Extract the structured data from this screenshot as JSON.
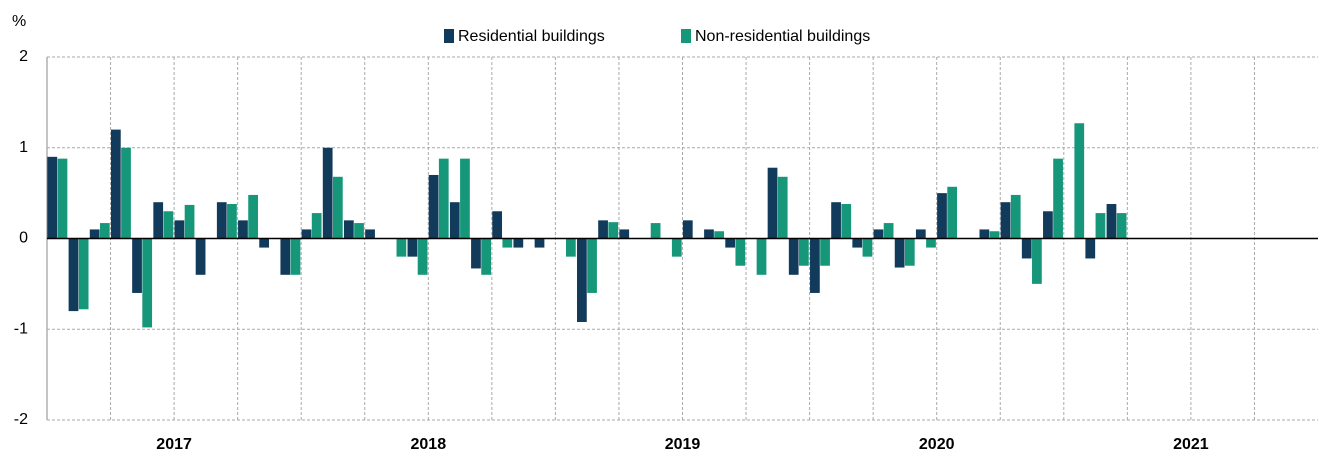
{
  "chart_data": {
    "type": "bar",
    "y_unit": "%",
    "categories": [
      null,
      null,
      null,
      null,
      null,
      null,
      null,
      null,
      null,
      null,
      null,
      null,
      null,
      null,
      null,
      null,
      null,
      null,
      null,
      null,
      null,
      null,
      null,
      null,
      null,
      null,
      null,
      null,
      null,
      null,
      null,
      null,
      null,
      null,
      null,
      null,
      null,
      null,
      null,
      null,
      null,
      null,
      null,
      null,
      null,
      null,
      null,
      null,
      null,
      null,
      null,
      null,
      null,
      null,
      null,
      null,
      null,
      null,
      null,
      null
    ],
    "year_labels": [
      "2017",
      "2018",
      "2019",
      "2020",
      "2021"
    ],
    "series": [
      {
        "name": "Residential buildings",
        "color": "#123a5a",
        "values": [
          0.9,
          -0.8,
          0.1,
          1.2,
          -0.6,
          0.4,
          0.2,
          -0.4,
          0.4,
          0.2,
          -0.1,
          -0.4,
          0.1,
          1.0,
          0.2,
          0.1,
          0,
          -0.2,
          0.7,
          0.4,
          -0.33,
          0.3,
          -0.1,
          -0.1,
          0,
          -0.92,
          0.2,
          0.1,
          0,
          0,
          0.2,
          0.1,
          -0.1,
          0,
          0.78,
          -0.4,
          -0.6,
          0.4,
          -0.1,
          0.1,
          -0.32,
          0.1,
          0.5,
          0,
          0.1,
          0.4,
          -0.22,
          0.3,
          0,
          -0.22,
          0.38,
          null,
          null,
          null,
          null,
          null,
          null,
          null,
          null,
          null
        ]
      },
      {
        "name": "Non-residential buildings",
        "color": "#17977a",
        "values": [
          0.88,
          -0.78,
          0.17,
          1.0,
          -0.98,
          0.3,
          0.37,
          0,
          0.38,
          0.48,
          0,
          -0.4,
          0.28,
          0.68,
          0.17,
          0,
          -0.2,
          -0.4,
          0.88,
          0.88,
          -0.4,
          -0.1,
          0,
          0,
          -0.2,
          -0.6,
          0.18,
          0,
          0.17,
          -0.2,
          0,
          0.08,
          -0.3,
          -0.4,
          0.68,
          -0.3,
          -0.3,
          0.38,
          -0.2,
          0.17,
          -0.3,
          -0.1,
          0.57,
          0,
          0.08,
          0.48,
          -0.5,
          0.88,
          1.27,
          0.28,
          0.28,
          null,
          null,
          null,
          null,
          null,
          null,
          null,
          null,
          null
        ]
      }
    ],
    "ylim": [
      -2,
      2
    ],
    "yticks": [
      -2,
      -1,
      0,
      1,
      2
    ],
    "grid": true,
    "legend": "top"
  }
}
